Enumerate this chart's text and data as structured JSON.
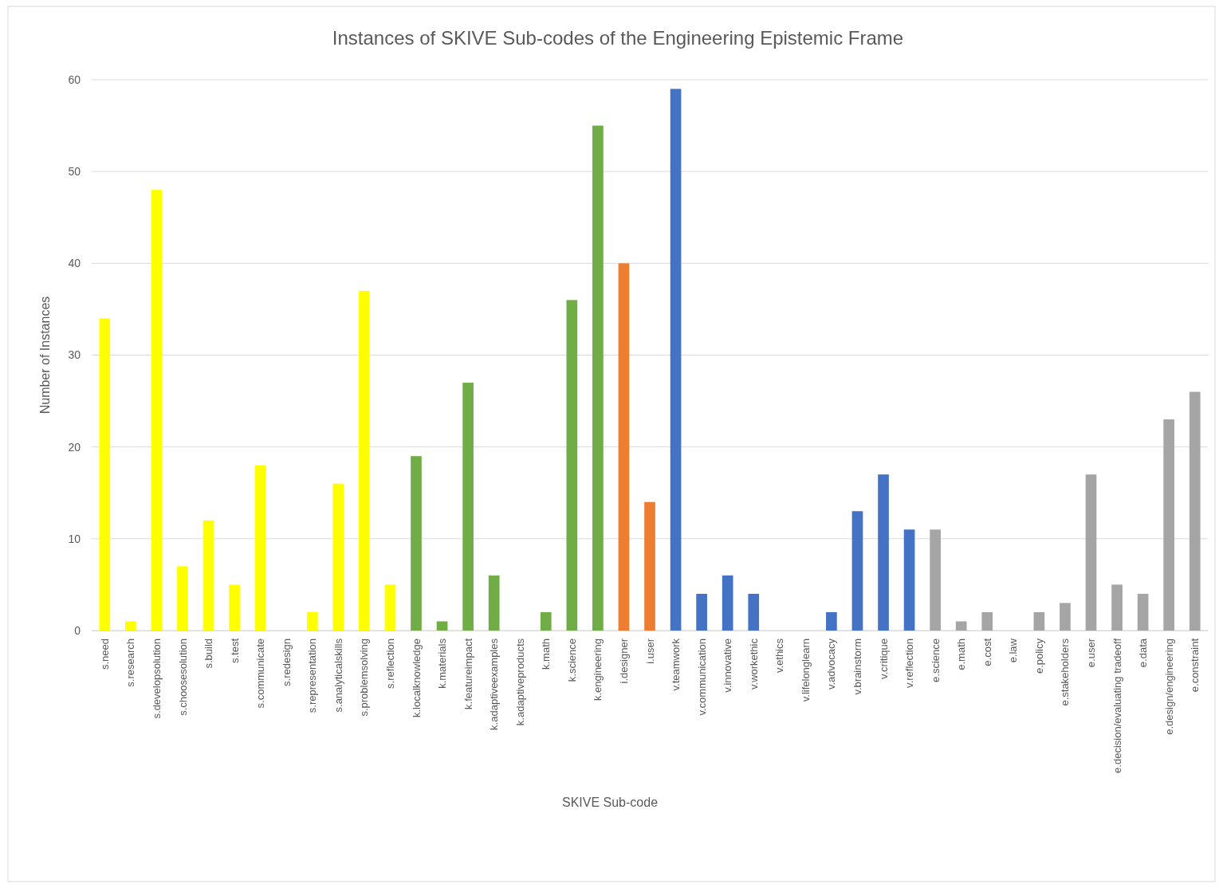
{
  "chart_data": {
    "type": "bar",
    "title": "Instances of SKIVE Sub-codes  of the Engineering Epistemic Frame",
    "xlabel": "SKIVE Sub-code",
    "ylabel": "Number of Instances",
    "categories": [
      "s.need",
      "s.research",
      "s.developsolution",
      "s.choosesolution",
      "s.build",
      "s.test",
      "s.communicate",
      "s.redesign",
      "s.representation",
      "s.analyticalskills",
      "s.problemsolving",
      "s.reflection",
      "k.localknowledge",
      "k.materials",
      "k.featureimpact",
      "k.adaptiveexamples",
      "k.adaptiveproducts",
      "k.math",
      "k.science",
      "k.engineering",
      "i.designer",
      "i.user",
      "v.teamwork",
      "v.communication",
      "v.innovative",
      "v.workethic",
      "v.ethics",
      "v.lifelonglearn",
      "v.advocacy",
      "v.brainstorm",
      "v.critique",
      "v.reflection",
      "e.science",
      "e.math",
      "e.cost",
      "e.law",
      "e.policy",
      "e.stakeholders",
      "e.user",
      "e.decision/evaluating tradeoff",
      "e.data",
      "e.design/engineering",
      "e.constraint"
    ],
    "values": [
      34,
      1,
      48,
      7,
      12,
      5,
      18,
      0,
      2,
      16,
      37,
      5,
      19,
      1,
      27,
      6,
      0,
      2,
      36,
      55,
      40,
      14,
      59,
      4,
      6,
      4,
      0,
      0,
      2,
      13,
      17,
      11,
      11,
      1,
      2,
      0,
      2,
      3,
      17,
      5,
      4,
      23,
      26
    ],
    "colors": [
      "#ffff00",
      "#ffff00",
      "#ffff00",
      "#ffff00",
      "#ffff00",
      "#ffff00",
      "#ffff00",
      "#ffff00",
      "#ffff00",
      "#ffff00",
      "#ffff00",
      "#ffff00",
      "#70ad47",
      "#70ad47",
      "#70ad47",
      "#70ad47",
      "#70ad47",
      "#70ad47",
      "#70ad47",
      "#70ad47",
      "#ed7d31",
      "#ed7d31",
      "#4472c4",
      "#4472c4",
      "#4472c4",
      "#4472c4",
      "#4472c4",
      "#4472c4",
      "#4472c4",
      "#4472c4",
      "#4472c4",
      "#4472c4",
      "#a5a5a5",
      "#a5a5a5",
      "#a5a5a5",
      "#a5a5a5",
      "#a5a5a5",
      "#a5a5a5",
      "#a5a5a5",
      "#a5a5a5",
      "#a5a5a5",
      "#a5a5a5",
      "#a5a5a5"
    ],
    "ylim": [
      0,
      60
    ],
    "yticks": [
      0,
      10,
      20,
      30,
      40,
      50,
      60
    ],
    "grid": "y"
  }
}
